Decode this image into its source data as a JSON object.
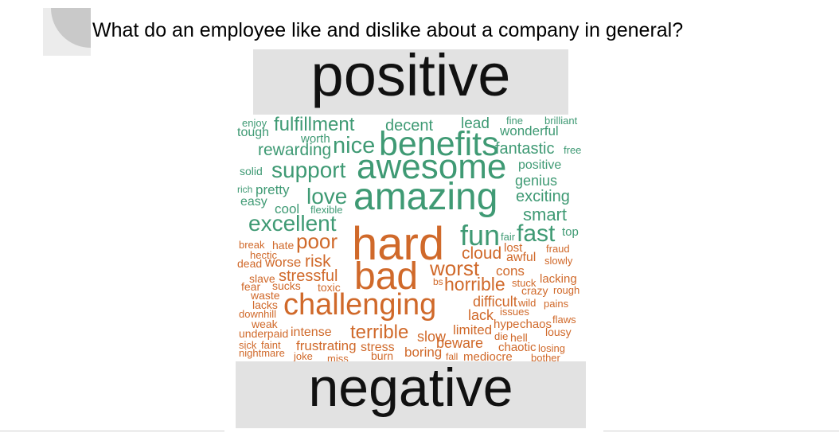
{
  "slide": {
    "title": "What do an employee like and dislike about a company in general?"
  },
  "labels": {
    "positive": "positive",
    "negative": "negative"
  },
  "colors": {
    "positive": "#3f9a74",
    "negative": "#d0692a",
    "label_box": "#e2e2e2"
  },
  "word_cloud": {
    "positive_words": [
      "enjoy",
      "fulfillment",
      "decent",
      "lead",
      "fine",
      "brilliant",
      "tough",
      "worth",
      "wonderful",
      "rewarding",
      "nice",
      "benefits",
      "fantastic",
      "free",
      "solid",
      "support",
      "awesome",
      "positive",
      "genius",
      "rich",
      "pretty",
      "love",
      "amazing",
      "exciting",
      "easy",
      "cool",
      "flexible",
      "smart",
      "excellent",
      "fun",
      "fair",
      "fast",
      "top"
    ],
    "negative_words": [
      "break",
      "hate",
      "poor",
      "hard",
      "lost",
      "fraud",
      "hectic",
      "cloud",
      "awful",
      "slowly",
      "dead",
      "worse",
      "risk",
      "worst",
      "cons",
      "slave",
      "stressful",
      "bad",
      "bs",
      "horrible",
      "stuck",
      "lacking",
      "fear",
      "sucks",
      "toxic",
      "crazy",
      "rough",
      "waste",
      "challenging",
      "difficult",
      "wild",
      "pains",
      "lacks",
      "downhill",
      "lack",
      "issues",
      "weak",
      "hype",
      "chaos",
      "flaws",
      "underpaid",
      "intense",
      "terrible",
      "slow",
      "limited",
      "lousy",
      "die",
      "hell",
      "sick",
      "faint",
      "beware",
      "chaotic",
      "frustrating",
      "stress",
      "nightmare",
      "losing",
      "joke",
      "miss",
      "burn",
      "boring",
      "fall",
      "mediocre",
      "bother"
    ]
  }
}
